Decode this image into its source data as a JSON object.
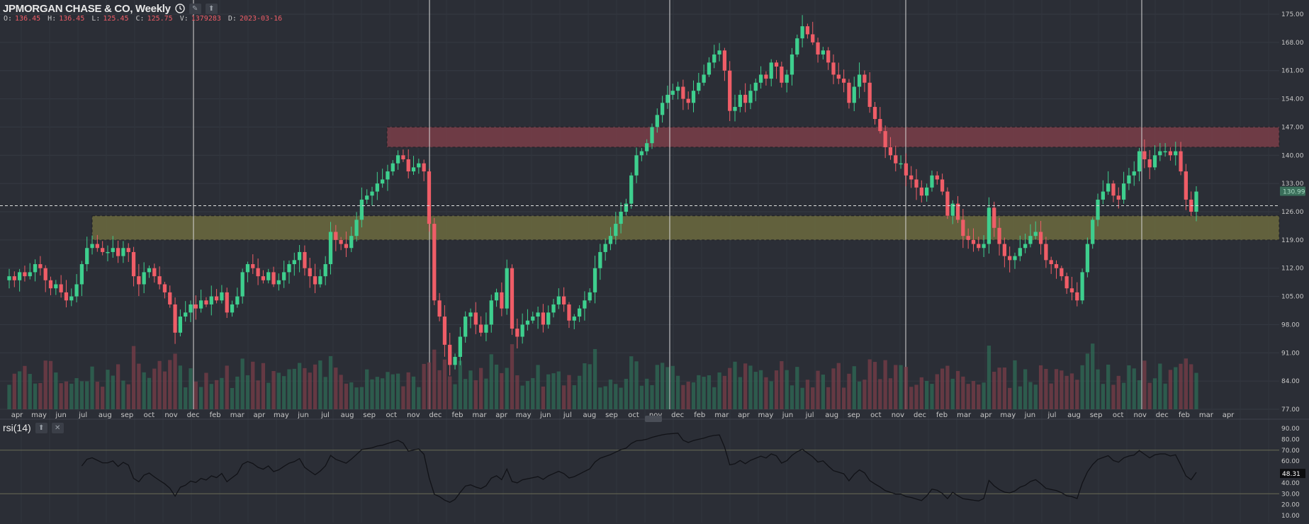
{
  "header": {
    "title": "JPMORGAN CHASE & CO, Weekly",
    "ohlc": [
      {
        "key": "O:",
        "value": "136.45"
      },
      {
        "key": "H:",
        "value": "136.45"
      },
      {
        "key": "L:",
        "value": "125.45"
      },
      {
        "key": "C:",
        "value": "125.75"
      },
      {
        "key": "V:",
        "value": "1379283"
      },
      {
        "key": "D:",
        "value": "2023-03-16"
      }
    ]
  },
  "rsi_panel": {
    "title": "rsi(14)",
    "value_label": "48.31"
  },
  "price_label": "130.99",
  "colors": {
    "background": "#2b2e36",
    "grid": "#363a43",
    "up": "#3ecf8e",
    "down": "#ef5d67",
    "axis_text": "#c8c8c8"
  },
  "icons": [
    "clock-icon",
    "pencil-icon",
    "pin-icon",
    "close-icon",
    "resize-handle-icon"
  ],
  "chart_data": [
    {
      "type": "candlestick",
      "title": "JPMORGAN CHASE & CO, Weekly",
      "ylim": [
        77,
        175
      ],
      "price_ticks": [
        "175.00",
        "168.00",
        "161.00",
        "154.00",
        "147.00",
        "140.00",
        "133.00",
        "126.00",
        "119.00",
        "112.00",
        "105.00",
        "98.00",
        "91.00",
        "84.00",
        "77.00"
      ],
      "x_labels": [
        "apr",
        "may",
        "jun",
        "jul",
        "aug",
        "sep",
        "oct",
        "nov",
        "dec",
        "feb",
        "mar",
        "apr",
        "may",
        "jun",
        "jul",
        "aug",
        "sep",
        "oct",
        "nov",
        "dec",
        "feb",
        "mar",
        "apr",
        "may",
        "jun",
        "jul",
        "aug",
        "sep",
        "oct",
        "nov",
        "dec",
        "feb",
        "mar",
        "apr",
        "may",
        "jun",
        "jul",
        "aug",
        "sep",
        "oct",
        "nov",
        "dec",
        "feb",
        "mar",
        "apr",
        "may",
        "jun",
        "jul",
        "aug",
        "sep",
        "oct",
        "nov",
        "dec",
        "feb",
        "mar",
        "apr"
      ],
      "zones": [
        {
          "name": "resistance",
          "from": 142,
          "to": 147,
          "color": "#7a3d48"
        },
        {
          "name": "support",
          "from": 119,
          "to": 125,
          "color": "#6c6a3e"
        }
      ],
      "dashed_line": 127.5,
      "closes": [
        110,
        109,
        111,
        110,
        111,
        113,
        112,
        109,
        107,
        108,
        106,
        104,
        105,
        108,
        113,
        117,
        118,
        117,
        116,
        116,
        117,
        115,
        117,
        116,
        110,
        108,
        111,
        112,
        110,
        108,
        106,
        103,
        96,
        100,
        101,
        103,
        102,
        104,
        103,
        105,
        104,
        106,
        101,
        103,
        105,
        111,
        113,
        112,
        110,
        109,
        111,
        108,
        109,
        111,
        113,
        114,
        116,
        112,
        110,
        108,
        110,
        113,
        121,
        119,
        118,
        117,
        120,
        124,
        129,
        130,
        131,
        133,
        134,
        136,
        138,
        140,
        139,
        136,
        137,
        138,
        136,
        123,
        104,
        100,
        93,
        88,
        90,
        95,
        100,
        101,
        98,
        96,
        98,
        104,
        106,
        102,
        112,
        97,
        95,
        98,
        99,
        100,
        101,
        98,
        101,
        103,
        105,
        103,
        99,
        100,
        102,
        104,
        106,
        112,
        116,
        118,
        120,
        123,
        126,
        128,
        135,
        140,
        141,
        143,
        147,
        150,
        153,
        155,
        156,
        157,
        154,
        153,
        156,
        158,
        160,
        163,
        165,
        166,
        161,
        151,
        152,
        155,
        153,
        156,
        158,
        160,
        159,
        163,
        162,
        158,
        160,
        165,
        169,
        172,
        170,
        168,
        165,
        166,
        163,
        160,
        159,
        158,
        153,
        157,
        160,
        158,
        152,
        149,
        146,
        142,
        140,
        138,
        138,
        135,
        134,
        132,
        130,
        132,
        135,
        134,
        131,
        125,
        128,
        124,
        120,
        119,
        118,
        117,
        118,
        127,
        122,
        118,
        115,
        114,
        115,
        117,
        118,
        120,
        121,
        118,
        114,
        113,
        112,
        110,
        107,
        106,
        104,
        111,
        118,
        124,
        129,
        131,
        133,
        130,
        129,
        133,
        135,
        136,
        141,
        139,
        137,
        140,
        141,
        141,
        140,
        141,
        136,
        129,
        126,
        131
      ]
    },
    {
      "type": "line",
      "title": "rsi(14)",
      "ylim": [
        10,
        90
      ],
      "y_ticks": [
        "90.00",
        "80.00",
        "70.00",
        "60.00",
        "50.00",
        "40.00",
        "30.00",
        "20.00",
        "10.00"
      ],
      "bands": [
        70,
        30
      ],
      "value_label": "48.31"
    }
  ]
}
